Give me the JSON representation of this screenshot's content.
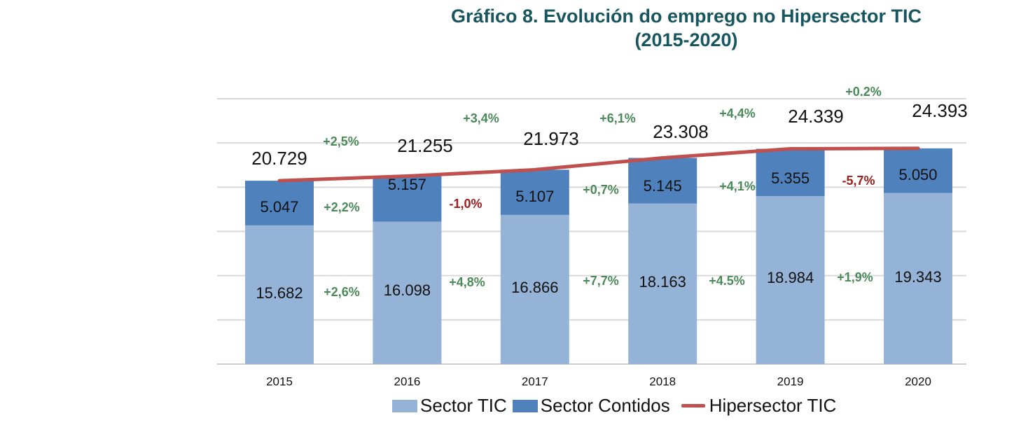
{
  "chart_data": {
    "type": "bar",
    "stacked": true,
    "title_line1": "Gráfico 8. Evolución do emprego no Hipersector TIC",
    "title_line2": "(2015-2020)",
    "categories": [
      "2015",
      "2016",
      "2017",
      "2018",
      "2019",
      "2020"
    ],
    "ylim": [
      0,
      30000
    ],
    "grid": true,
    "legend_position": "bottom",
    "series": [
      {
        "name": "Sector TIC",
        "type": "bar",
        "color": "#95b3d7",
        "values": [
          15682,
          16098,
          16866,
          18163,
          18984,
          19343
        ],
        "labels": [
          "15.682",
          "16.098",
          "16.866",
          "18.163",
          "18.984",
          "19.343"
        ]
      },
      {
        "name": "Sector Contidos",
        "type": "bar",
        "color": "#4f81bd",
        "values": [
          5047,
          5157,
          5107,
          5145,
          5355,
          5050
        ],
        "labels": [
          "5.047",
          "5.157",
          "5.107",
          "5.145",
          "5.355",
          "5.050"
        ]
      },
      {
        "name": "Hipersector TIC",
        "type": "line",
        "color": "#c0504d",
        "values": [
          20729,
          21255,
          21973,
          23308,
          24339,
          24393
        ],
        "labels": [
          "20.729",
          "21.255",
          "21.973",
          "23.308",
          "24.339",
          "24.393"
        ]
      }
    ],
    "growth_annotations": {
      "hipersector": [
        "+2,5%",
        "+3,4%",
        "+6,1%",
        "+4,4%",
        "+0.2%"
      ],
      "contidos": [
        "+2,2%",
        "-1,0%",
        "+0,7%",
        "+4,1%",
        "-5,7%"
      ],
      "tic": [
        "+2,6%",
        "+4,8%",
        "+7,7%",
        "+4.5%",
        "+1,9%"
      ]
    },
    "colors": {
      "positive": "#4a8a58",
      "negative": "#a11d1d",
      "title": "#17565f"
    }
  }
}
